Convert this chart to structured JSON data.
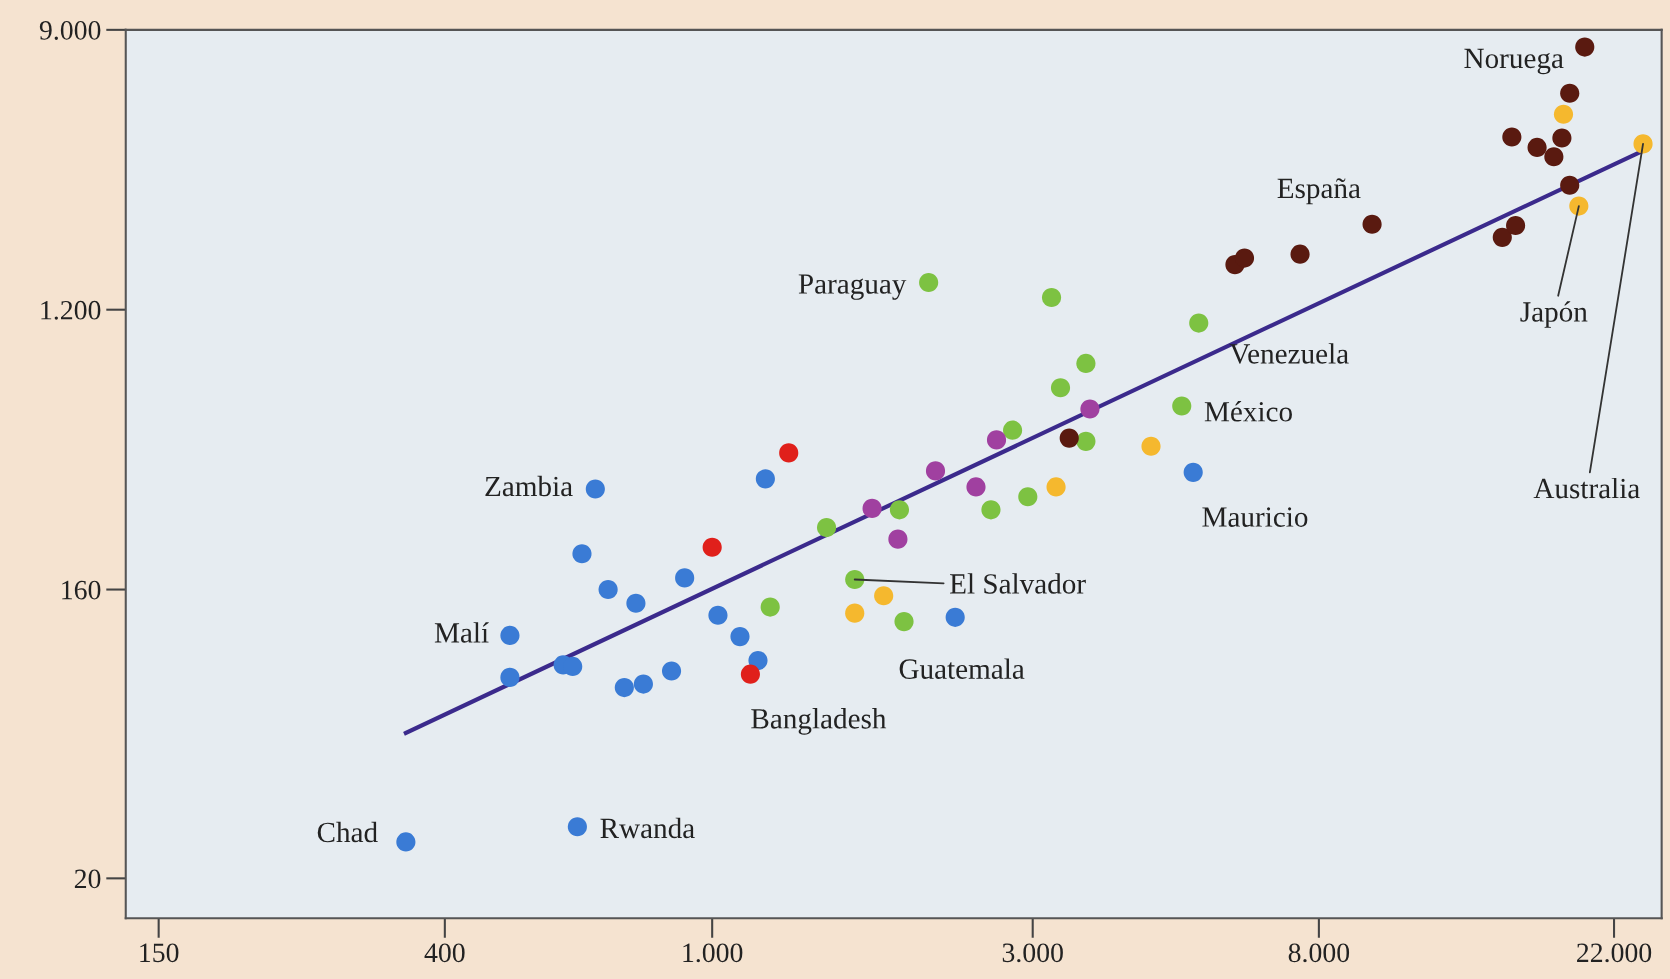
{
  "chart_data": {
    "type": "scatter",
    "log": "xy",
    "marker": "circle",
    "xlim": [
      134,
      25900
    ],
    "ylim": [
      15,
      9000
    ],
    "xticks": [
      150,
      400,
      {
        "value": 1000,
        "label": "1.000"
      },
      {
        "value": 3000,
        "label": "3.000"
      },
      {
        "value": 8000,
        "label": "8.000"
      },
      {
        "value": 22000,
        "label": "22.000"
      }
    ],
    "yticks": [
      20,
      160,
      {
        "value": 1200,
        "label": "1.200"
      },
      {
        "value": 9000,
        "label": "9.000"
      }
    ],
    "series": [
      {
        "color": "#3a7bd5",
        "x": [
          350,
          630,
          500,
          670,
          640,
          700,
          770,
          910,
          1020,
          1100,
          1170,
          1200,
          2300,
          5200,
          500,
          600,
          620,
          740,
          790,
          870
        ],
        "values": [
          26,
          29,
          115,
          330,
          207,
          160,
          145,
          174,
          133,
          114,
          96,
          355,
          131,
          372,
          85,
          93,
          92,
          79,
          81,
          89
        ]
      },
      {
        "color": "#e0201b",
        "x": [
          1000,
          1300,
          1140
        ],
        "values": [
          217,
          428,
          87
        ]
      },
      {
        "color": "#7dc242",
        "x": [
          2100,
          3200,
          3600,
          3300,
          2800,
          3600,
          2950,
          2600,
          1900,
          1480,
          1630,
          1220,
          1930,
          5300,
          5000
        ],
        "values": [
          1460,
          1310,
          815,
          684,
          504,
          465,
          312,
          284,
          284,
          250,
          172,
          141,
          127,
          1090,
          600
        ]
      },
      {
        "color": "#a040a0",
        "x": [
          1730,
          1890,
          2150,
          2470,
          2650,
          3650
        ],
        "values": [
          287,
          230,
          376,
          335,
          470,
          587
        ]
      },
      {
        "color": "#f5b82e",
        "x": [
          1630,
          1800,
          3250,
          4500,
          18500,
          19500,
          24300
        ],
        "values": [
          135,
          153,
          335,
          449,
          4900,
          2530,
          3960
        ]
      },
      {
        "color": "#5a1a10",
        "x": [
          3400,
          6000,
          6200,
          7500,
          9600,
          15000,
          15700,
          15500,
          16900,
          17900,
          18400,
          18900,
          18900,
          19900
        ],
        "values": [
          476,
          1660,
          1740,
          1790,
          2220,
          2020,
          2200,
          4160,
          3860,
          3610,
          4130,
          2940,
          5700,
          7950
        ]
      },
      {
        "type": "line",
        "marker": "none",
        "color": "#3b2a8c",
        "x": [
          350,
          24300
        ],
        "values": [
          57,
          3770
        ]
      }
    ],
    "annotations": [
      {
        "text": "Chad",
        "x": 350,
        "y": 26
      },
      {
        "text": "Rwanda",
        "x": 630,
        "y": 29
      },
      {
        "text": "Malí",
        "x": 500,
        "y": 115
      },
      {
        "text": "Zambia",
        "x": 670,
        "y": 330
      },
      {
        "text": "Bangladesh",
        "x": 1140,
        "y": 87
      },
      {
        "text": "El Salvador",
        "x": 1630,
        "y": 172
      },
      {
        "text": "Guatemala",
        "x": 1930,
        "y": 127
      },
      {
        "text": "Paraguay",
        "x": 2100,
        "y": 1460
      },
      {
        "text": "Venezuela",
        "x": 5300,
        "y": 1090
      },
      {
        "text": "México",
        "x": 5000,
        "y": 600
      },
      {
        "text": "Mauricio",
        "x": 5200,
        "y": 372
      },
      {
        "text": "España",
        "x": 9600,
        "y": 2220
      },
      {
        "text": "Noruega",
        "x": 19900,
        "y": 7950
      },
      {
        "text": "Japón",
        "x": 19500,
        "y": 2530
      },
      {
        "text": "Australia",
        "x": 24300,
        "y": 3960
      }
    ]
  }
}
